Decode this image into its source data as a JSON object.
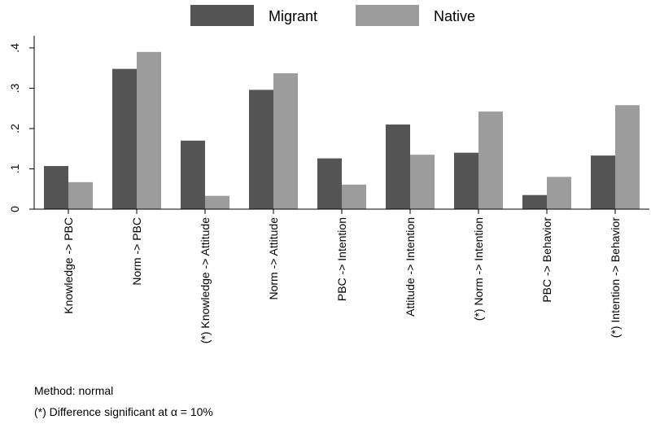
{
  "chart_data": {
    "type": "bar",
    "categories": [
      "Knowledge -> PBC",
      "Norm -> PBC",
      "(*) Knowledge -> Attitude",
      "Norm -> Attitude",
      "PBC -> Intention",
      "Attitude -> Intention",
      "(*) Norm -> Intention",
      "PBC -> Behavior",
      "(*) Intention -> Behavior"
    ],
    "series": [
      {
        "name": "Migrant",
        "color": "#555555",
        "values": [
          0.107,
          0.348,
          0.17,
          0.296,
          0.126,
          0.21,
          0.14,
          0.035,
          0.133
        ]
      },
      {
        "name": "Native",
        "color": "#9c9c9c",
        "values": [
          0.067,
          0.39,
          0.033,
          0.337,
          0.061,
          0.135,
          0.242,
          0.08,
          0.258
        ]
      }
    ],
    "yticks": [
      0,
      0.1,
      0.2,
      0.3,
      0.4
    ],
    "ytick_labels": [
      "0",
      ".1",
      ".2",
      ".3",
      ".4"
    ],
    "ylim": [
      0,
      0.43
    ],
    "title": "",
    "xlabel": "",
    "ylabel": "",
    "grid": false,
    "legend_position": "top"
  },
  "notes": {
    "method": "Method: normal",
    "significance": "(*) Difference significant at α = 10%"
  }
}
